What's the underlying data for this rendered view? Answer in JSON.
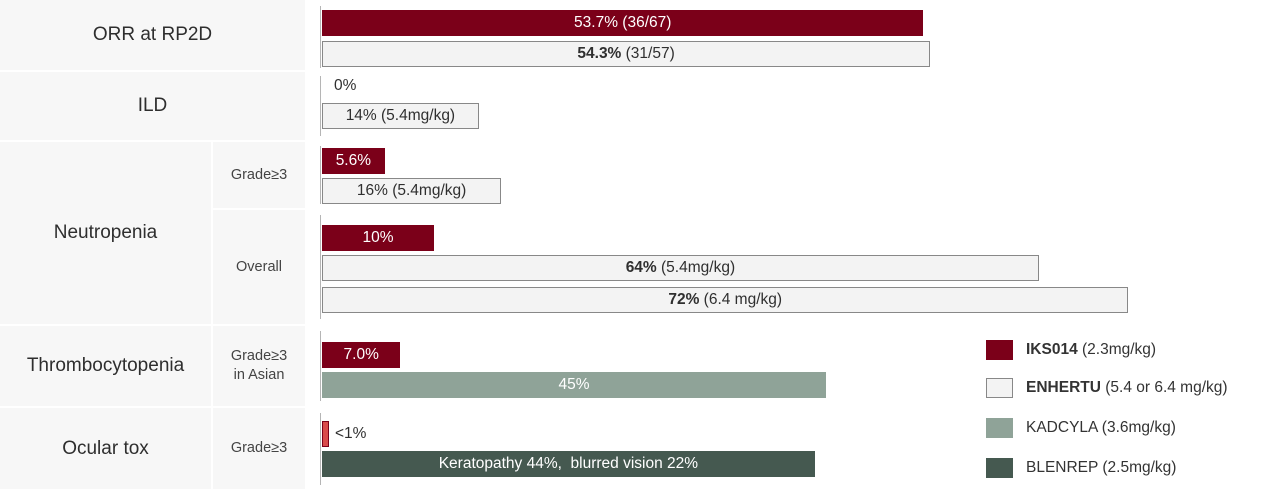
{
  "colors": {
    "iks": "#7b0019",
    "enh": "#f3f3f3",
    "enh_border": "#888888",
    "kad": "#8fa398",
    "blen": "#455950",
    "ocular_small": "#d94b4b"
  },
  "rows": [
    {
      "category": "ORR at RP2D",
      "sub": ""
    },
    {
      "category": "ILD",
      "sub": ""
    },
    {
      "category": "Neutropenia",
      "sub": [
        "Grade≥3",
        "Overall"
      ]
    },
    {
      "category": "Thrombocytopenia",
      "sub": "Grade≥3\nin Asian"
    },
    {
      "category": "Ocular tox",
      "sub": "Grade≥3"
    }
  ],
  "legend": [
    {
      "bold": "IKS014",
      "text": " (2.3mg/kg)",
      "series": "iks"
    },
    {
      "bold": "ENHERTU",
      "text": " (5.4 or 6.4 mg/kg)",
      "series": "enh"
    },
    {
      "bold": "",
      "text": "KADCYLA (3.6mg/kg)",
      "series": "kad"
    },
    {
      "bold": "",
      "text": "BLENREP (2.5mg/kg)",
      "series": "blen"
    }
  ],
  "chart_data": {
    "type": "bar",
    "orientation": "horizontal",
    "xlim": [
      0,
      100
    ],
    "bars": [
      {
        "group": "ORR at RP2D",
        "series": "iks",
        "value": 53.7,
        "label": "53.7% (36/67)",
        "bold": "",
        "label_pos": "inside"
      },
      {
        "group": "ORR at RP2D",
        "series": "enh",
        "value": 54.3,
        "label": " (31/57)",
        "bold": "54.3%",
        "label_pos": "inside"
      },
      {
        "group": "ILD",
        "series": "iks",
        "value": 0,
        "label": "0%",
        "bold": "",
        "label_pos": "outside"
      },
      {
        "group": "ILD",
        "series": "enh",
        "value": 14,
        "label": "14% (5.4mg/kg)",
        "bold": "",
        "label_pos": "inside"
      },
      {
        "group": "Neutropenia Grade≥3",
        "series": "iks",
        "value": 5.6,
        "label": "5.6%",
        "bold": "",
        "label_pos": "inside"
      },
      {
        "group": "Neutropenia Grade≥3",
        "series": "enh",
        "value": 16,
        "label": "16% (5.4mg/kg)",
        "bold": "",
        "label_pos": "inside"
      },
      {
        "group": "Neutropenia Overall",
        "series": "iks",
        "value": 10,
        "label": "10%",
        "bold": "",
        "label_pos": "inside"
      },
      {
        "group": "Neutropenia Overall",
        "series": "enh",
        "value": 64,
        "label": " (5.4mg/kg)",
        "bold": "64%",
        "label_pos": "inside"
      },
      {
        "group": "Neutropenia Overall",
        "series": "enh",
        "value": 72,
        "label": " (6.4 mg/kg)",
        "bold": "72%",
        "label_pos": "inside"
      },
      {
        "group": "Thrombocytopenia Grade≥3 in Asian",
        "series": "iks",
        "value": 7.0,
        "label": "7.0%",
        "bold": "",
        "label_pos": "inside"
      },
      {
        "group": "Thrombocytopenia Grade≥3 in Asian",
        "series": "kad",
        "value": 45,
        "label": "45%",
        "bold": "",
        "label_pos": "inside"
      },
      {
        "group": "Ocular tox Grade≥3",
        "series": "ocular_small",
        "value": 0.5,
        "label": "<1%",
        "bold": "",
        "label_pos": "outside"
      },
      {
        "group": "Ocular tox Grade≥3",
        "series": "blen",
        "value": 44,
        "label": "Keratopathy 44%,  blurred vision 22%",
        "bold": "",
        "label_pos": "inside"
      }
    ]
  }
}
